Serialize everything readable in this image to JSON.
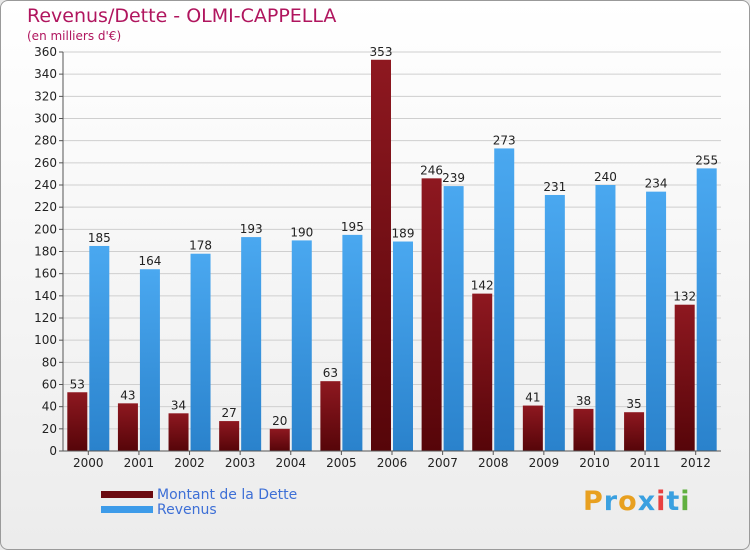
{
  "header": {
    "title": "Revenus/Dette - OLMI-CAPPELLA",
    "subtitle": "(en milliers d'€)"
  },
  "chart_data": {
    "type": "bar",
    "categories": [
      "2000",
      "2001",
      "2002",
      "2003",
      "2004",
      "2005",
      "2006",
      "2007",
      "2008",
      "2009",
      "2010",
      "2011",
      "2012"
    ],
    "series": [
      {
        "name": "Montant de la Dette",
        "values": [
          53,
          43,
          34,
          27,
          20,
          63,
          353,
          246,
          142,
          41,
          38,
          35,
          132
        ],
        "color": "#7a0d14"
      },
      {
        "name": "Revenus",
        "values": [
          185,
          164,
          178,
          193,
          190,
          195,
          189,
          239,
          273,
          231,
          240,
          234,
          255
        ],
        "color": "#3d9be9"
      }
    ],
    "ylim": [
      0,
      360
    ],
    "yticks": [
      0,
      20,
      40,
      60,
      80,
      100,
      120,
      140,
      160,
      180,
      200,
      220,
      240,
      260,
      280,
      300,
      320,
      340,
      360
    ],
    "grid": true,
    "legend_position": "bottom-left"
  },
  "legend": {
    "items": [
      {
        "label": "Montant de la Dette",
        "color": "#6b0a10"
      },
      {
        "label": "Revenus",
        "color": "#3d9be9"
      }
    ]
  },
  "logo": {
    "letters": [
      "P",
      "r",
      "o",
      "x",
      "i",
      "t",
      "i"
    ],
    "colors": [
      "#e8a020",
      "#3aa0e0",
      "#e8a020",
      "#3aa0e0",
      "#e84040",
      "#3aa0e0",
      "#60b040"
    ]
  }
}
